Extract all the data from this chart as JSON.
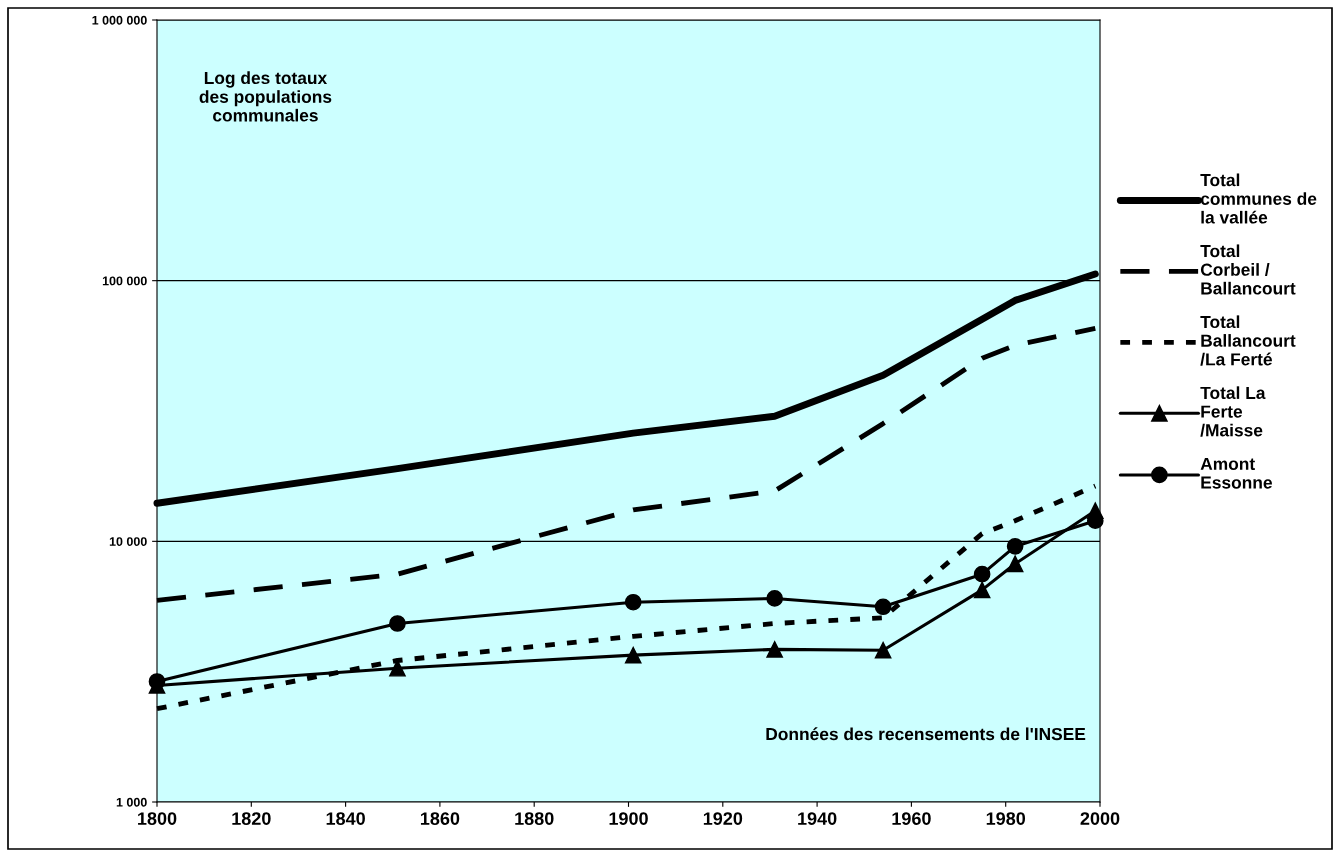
{
  "chart_data": {
    "type": "line",
    "x": [
      1800,
      1851,
      1901,
      1931,
      1954,
      1975,
      1982,
      1999
    ],
    "series": [
      {
        "name": "Total communes de la vallée",
        "color": "#000000",
        "line_style": "solid",
        "marker": "none",
        "values": [
          14000,
          19000,
          26000,
          30200,
          43400,
          71100,
          84000,
          106000
        ]
      },
      {
        "name": "Total Corbeil / Ballancourt",
        "color": "#000000",
        "line_style": "dashed",
        "marker": "none",
        "values": [
          5940,
          7480,
          13200,
          15600,
          28300,
          50400,
          56500,
          65600
        ]
      },
      {
        "name": "Total Ballancourt /La Ferté",
        "color": "#000000",
        "line_style": "dotted",
        "marker": "none",
        "values": [
          2280,
          3490,
          4320,
          4840,
          5090,
          10700,
          12000,
          16300
        ]
      },
      {
        "name": "Total La Ferte /Maisse",
        "color": "#000000",
        "line_style": "solid",
        "marker": "triangle",
        "values": [
          2800,
          3260,
          3660,
          3850,
          3820,
          6510,
          8200,
          13100
        ]
      },
      {
        "name": "Amont Essonne",
        "color": "#000000",
        "line_style": "solid",
        "marker": "circle",
        "values": [
          2900,
          4840,
          5840,
          6040,
          5610,
          7480,
          9570,
          12000
        ]
      }
    ],
    "log": "y",
    "xlim": [
      1800,
      2000
    ],
    "xticks": [
      1800,
      1820,
      1840,
      1860,
      1880,
      1900,
      1920,
      1940,
      1960,
      1980,
      2000
    ],
    "ylim": [
      1000,
      1000000
    ],
    "yticks": [
      {
        "value": 1000,
        "label": "1 000"
      },
      {
        "value": 10000,
        "label": "10 000"
      },
      {
        "value": 100000,
        "label": "100 000"
      },
      {
        "value": 1000000,
        "label": "1 000 000"
      }
    ],
    "grid": "y",
    "legend": "right",
    "annotations": [
      "Log des totaux des populations communales",
      "Données des recensements de l'INSEE"
    ]
  }
}
